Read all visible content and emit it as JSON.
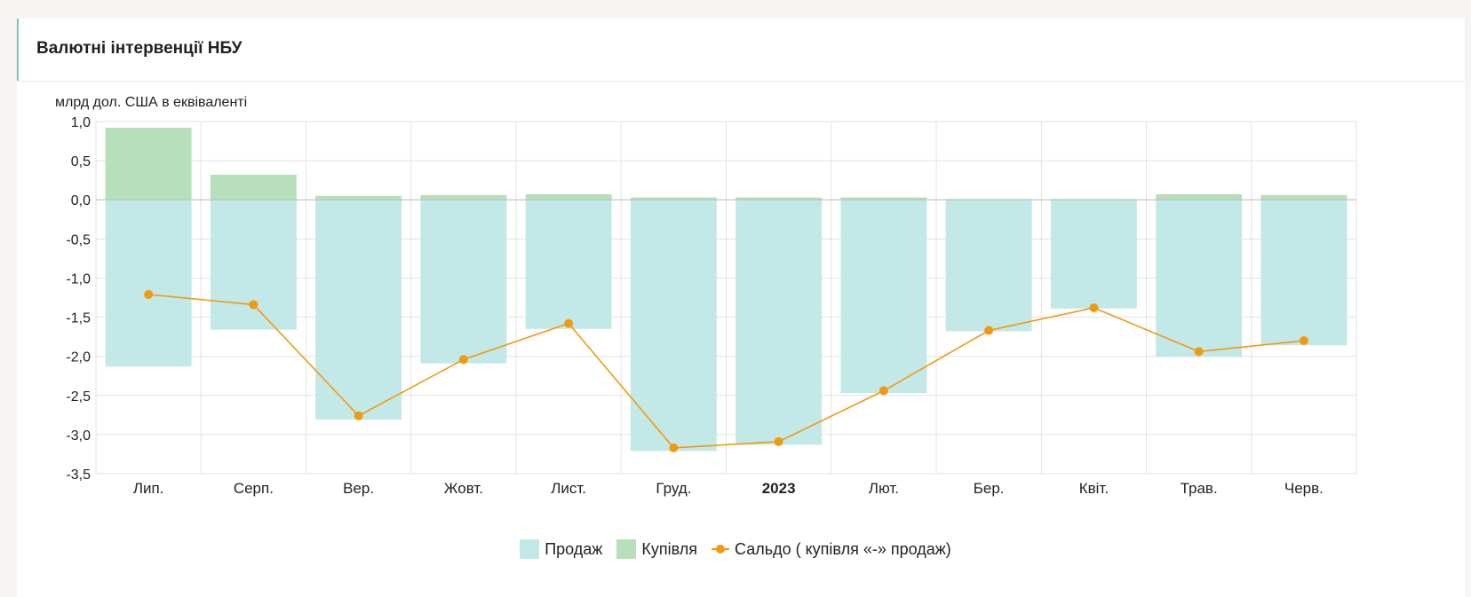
{
  "header": {
    "title": "Валютні інтервенції НБУ"
  },
  "chart_data": {
    "type": "bar",
    "ylabel": "млрд дол. США в еквіваленті",
    "ylim": [
      -3.5,
      1.0
    ],
    "yticks": [
      "1,0",
      "0,5",
      "0,0",
      "-0,5",
      "-1,0",
      "-1,5",
      "-2,0",
      "-2,5",
      "-3,0",
      "-3,5"
    ],
    "ytick_values": [
      1.0,
      0.5,
      0.0,
      -0.5,
      -1.0,
      -1.5,
      -2.0,
      -2.5,
      -3.0,
      -3.5
    ],
    "categories": [
      "Лип.",
      "Серп.",
      "Вер.",
      "Жовт.",
      "Лист.",
      "Груд.",
      "2023",
      "Лют.",
      "Бер.",
      "Квіт.",
      "Трав.",
      "Черв."
    ],
    "bold_categories": [
      "2023"
    ],
    "series": [
      {
        "name": "Продаж",
        "type": "bar",
        "color": "#c3e8e8",
        "values": [
          -2.13,
          -1.66,
          -2.81,
          -2.09,
          -1.65,
          -3.21,
          -3.13,
          -2.47,
          -1.68,
          -1.39,
          -2.01,
          -1.86
        ]
      },
      {
        "name": "Купівля",
        "type": "bar",
        "color": "#b6dfba",
        "values": [
          0.92,
          0.32,
          0.05,
          0.06,
          0.07,
          0.03,
          0.03,
          0.03,
          0.01,
          0.01,
          0.07,
          0.06
        ]
      },
      {
        "name": "Сальдо ( купівля «-» продаж)",
        "type": "line",
        "color": "#f09a12",
        "values": [
          -1.21,
          -1.34,
          -2.76,
          -2.04,
          -1.58,
          -3.17,
          -3.09,
          -2.44,
          -1.67,
          -1.38,
          -1.94,
          -1.8
        ]
      }
    ],
    "grid": true,
    "legend_position": "bottom-center"
  }
}
